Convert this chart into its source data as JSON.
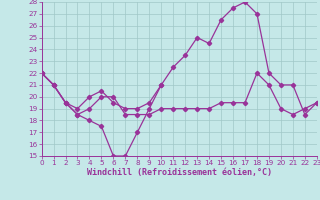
{
  "xlabel": "Windchill (Refroidissement éolien,°C)",
  "bg_color": "#c5e8e8",
  "line_color": "#993399",
  "grid_color": "#a0c8c8",
  "xlim": [
    0,
    23
  ],
  "ylim": [
    15,
    28
  ],
  "yticks": [
    15,
    16,
    17,
    18,
    19,
    20,
    21,
    22,
    23,
    24,
    25,
    26,
    27,
    28
  ],
  "xticks": [
    0,
    1,
    2,
    3,
    4,
    5,
    6,
    7,
    8,
    9,
    10,
    11,
    12,
    13,
    14,
    15,
    16,
    17,
    18,
    19,
    20,
    21,
    22,
    23
  ],
  "line1_x": [
    0,
    1,
    2,
    3,
    4,
    5,
    6,
    7,
    8,
    9,
    10,
    11,
    12,
    13,
    14,
    15,
    16,
    17,
    18,
    19,
    20,
    21,
    22,
    23
  ],
  "line1_y": [
    22.0,
    21.0,
    19.5,
    18.5,
    19.0,
    20.0,
    20.0,
    18.5,
    18.5,
    18.5,
    19.0,
    19.0,
    19.0,
    19.0,
    19.0,
    19.5,
    19.5,
    19.5,
    22.0,
    21.0,
    19.0,
    18.5,
    19.0,
    19.5
  ],
  "line2_x": [
    0,
    1,
    2,
    3,
    4,
    5,
    6,
    7,
    8,
    9,
    10,
    11,
    12,
    13,
    14,
    15,
    16,
    17,
    18,
    19,
    20,
    21,
    22,
    23
  ],
  "line2_y": [
    22.0,
    21.0,
    19.5,
    19.0,
    20.0,
    20.5,
    19.5,
    19.0,
    19.0,
    19.5,
    21.0,
    22.5,
    23.5,
    25.0,
    24.5,
    26.5,
    27.5,
    28.0,
    27.0,
    22.0,
    21.0,
    21.0,
    18.5,
    19.5
  ],
  "line3_x": [
    0,
    1,
    2,
    3,
    4,
    5,
    6,
    7,
    8,
    9,
    10
  ],
  "line3_y": [
    22.0,
    21.0,
    19.5,
    18.5,
    18.0,
    17.5,
    15.0,
    15.0,
    17.0,
    19.0,
    21.0
  ],
  "marker": "D",
  "marker_size": 2.2,
  "line_width": 0.9,
  "tick_fontsize": 5.2,
  "label_fontsize": 6.0
}
